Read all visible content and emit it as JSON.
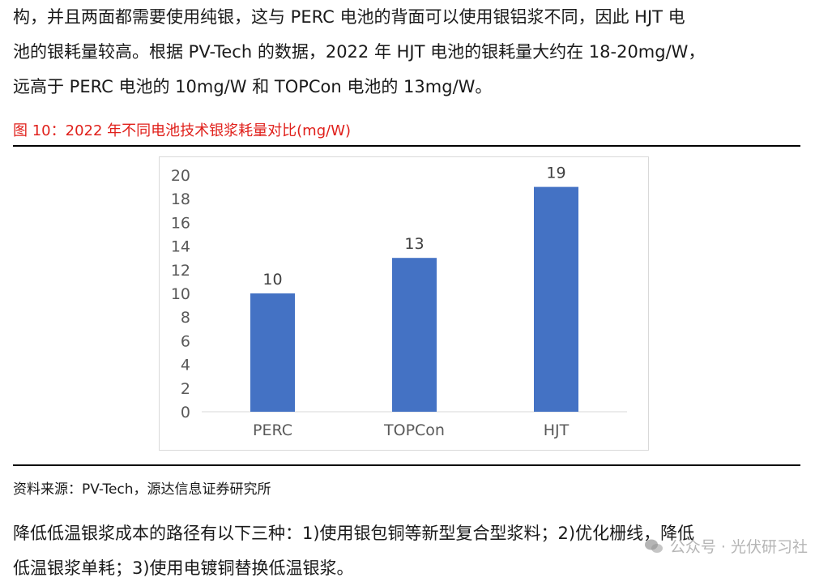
{
  "text": {
    "para1_line1": "构，并且两面都需要使用纯银，这与 PERC 电池的背面可以使用银铝浆不同，因此 HJT 电",
    "para1_line2": "池的银耗量较高。根据 PV-Tech 的数据，2022 年 HJT 电池的银耗量大约在 18-20mg/W，",
    "para1_line3": "远高于 PERC 电池的 10mg/W 和 TOPCon 电池的 13mg/W。",
    "caption": "图 10：2022 年不同电池技术银浆耗量对比(mg/W)",
    "source": "资料来源：PV-Tech，源达信息证券研究所",
    "para2_line1": "降低低温银浆成本的路径有以下三种：1)使用银包铜等新型复合型浆料；2)优化栅线，降低",
    "para2_line2": "低温银浆单耗；3)使用电镀铜替换低温银浆。",
    "watermark": "公众号 · 光伏研习社"
  },
  "colors": {
    "bar": "#4472c4",
    "caption": "#e0201b",
    "axis_text": "#595959"
  },
  "icons": {
    "watermark_icon": "wechat-icon"
  },
  "chart_data": {
    "type": "bar",
    "title": "",
    "xlabel": "",
    "ylabel": "",
    "categories": [
      "PERC",
      "TOPCon",
      "HJT"
    ],
    "values": [
      10,
      13,
      19
    ],
    "data_labels": [
      "10",
      "13",
      "19"
    ],
    "ylim": [
      0,
      20
    ],
    "yticks": [
      0,
      2,
      4,
      6,
      8,
      10,
      12,
      14,
      16,
      18,
      20
    ],
    "grid": false,
    "legend": "none"
  }
}
